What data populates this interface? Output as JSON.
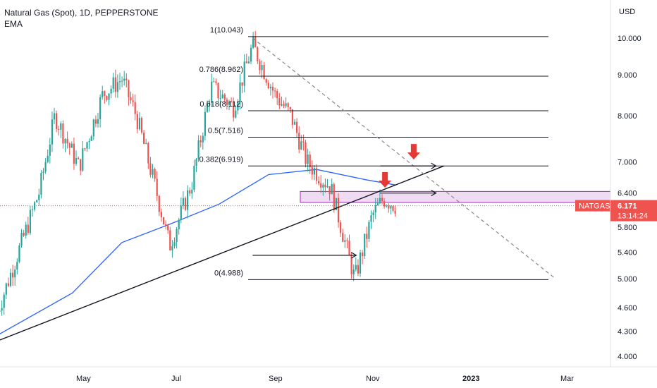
{
  "header": {
    "symbol_line": "Natural Gas (Spot), 1D, PEPPERSTONE",
    "indicator": "EMA"
  },
  "price_axis": {
    "currency": "USD",
    "ticks": [
      "10.000",
      "9.000",
      "8.000",
      "7.000",
      "6.400",
      "5.800",
      "5.400",
      "5.000",
      "4.600",
      "4.300",
      "4.000"
    ]
  },
  "time_axis": {
    "labels": [
      "May",
      "Jul",
      "Sep",
      "Nov",
      "2023",
      "Mar"
    ]
  },
  "last_price": {
    "ticker": "NATGAS",
    "price": "6.171",
    "countdown": "13:14:24"
  },
  "colors": {
    "up": "#26a69a",
    "down": "#ef5350",
    "ema": "#2962ff",
    "zone_fill": "#e1bee7",
    "zone_border": "#9c27b0",
    "arrow": "#e53935",
    "label_bg": "#ef5350"
  },
  "fib_levels": [
    {
      "label": "1(10.043)",
      "price": 10.043
    },
    {
      "label": "0.786(8.962)",
      "price": 8.962
    },
    {
      "label": "0.618(8.112)",
      "price": 8.112
    },
    {
      "label": "0.5(7.516)",
      "price": 7.516
    },
    {
      "label": "0.382(6.919)",
      "price": 6.919
    },
    {
      "label": "0(4.988)",
      "price": 4.988
    }
  ],
  "chart_data": {
    "type": "candlestick",
    "title": "Natural Gas (Spot), 1D, PEPPERSTONE",
    "y_scale": "log",
    "ylim": [
      3.85,
      11.3
    ],
    "x_labels": [
      "May",
      "Jul",
      "Sep",
      "Nov",
      "2023",
      "Mar"
    ],
    "series": [
      {
        "name": "EMA",
        "type": "line"
      }
    ],
    "price_path": [
      {
        "date": "2022-03-15",
        "value": 4.55
      },
      {
        "date": "2022-04-10",
        "value": 6.4
      },
      {
        "date": "2022-04-20",
        "value": 8.0
      },
      {
        "date": "2022-05-05",
        "value": 6.9
      },
      {
        "date": "2022-05-20",
        "value": 8.5
      },
      {
        "date": "2022-06-01",
        "value": 8.9
      },
      {
        "date": "2022-06-10",
        "value": 8.0
      },
      {
        "date": "2022-06-22",
        "value": 6.5
      },
      {
        "date": "2022-07-01",
        "value": 5.5
      },
      {
        "date": "2022-07-15",
        "value": 6.6
      },
      {
        "date": "2022-07-27",
        "value": 8.7
      },
      {
        "date": "2022-08-10",
        "value": 8.2
      },
      {
        "date": "2022-08-22",
        "value": 9.8
      },
      {
        "date": "2022-09-05",
        "value": 8.5
      },
      {
        "date": "2022-09-15",
        "value": 8.0
      },
      {
        "date": "2022-09-25",
        "value": 7.0
      },
      {
        "date": "2022-10-10",
        "value": 6.5
      },
      {
        "date": "2022-10-25",
        "value": 5.0
      },
      {
        "date": "2022-11-05",
        "value": 6.0
      },
      {
        "date": "2022-11-12",
        "value": 6.3
      },
      {
        "date": "2022-11-20",
        "value": 6.17
      }
    ],
    "ema_path": [
      {
        "date": "2022-03-15",
        "value": 4.25
      },
      {
        "date": "2022-05-01",
        "value": 4.8
      },
      {
        "date": "2022-06-01",
        "value": 5.55
      },
      {
        "date": "2022-07-01",
        "value": 5.85
      },
      {
        "date": "2022-08-01",
        "value": 6.2
      },
      {
        "date": "2022-09-01",
        "value": 6.75
      },
      {
        "date": "2022-10-01",
        "value": 6.85
      },
      {
        "date": "2022-11-01",
        "value": 6.65
      },
      {
        "date": "2022-11-20",
        "value": 6.55
      }
    ],
    "drawings": {
      "support_trendline": [
        {
          "date": "2022-03-15",
          "value": 4.18
        },
        {
          "date": "2022-12-20",
          "value": 6.92
        }
      ],
      "resistance_trendline_dashed": [
        {
          "date": "2022-08-22",
          "value": 10.0
        },
        {
          "date": "2023-02-28",
          "value": 5.0
        }
      ],
      "zone": {
        "low": 6.23,
        "high": 6.43
      },
      "arrows_right": [
        {
          "from": "2022-08-22",
          "to": "2022-10-26",
          "value": 5.35
        },
        {
          "from": "2022-11-10",
          "to": "2022-12-15",
          "value": 6.92
        },
        {
          "from": "2022-11-10",
          "to": "2022-12-15",
          "value": 6.4
        }
      ],
      "down_arrows": [
        {
          "date": "2022-12-01",
          "value": 7.05
        },
        {
          "date": "2022-11-13",
          "value": 6.5
        }
      ]
    },
    "last_price": 6.171
  }
}
